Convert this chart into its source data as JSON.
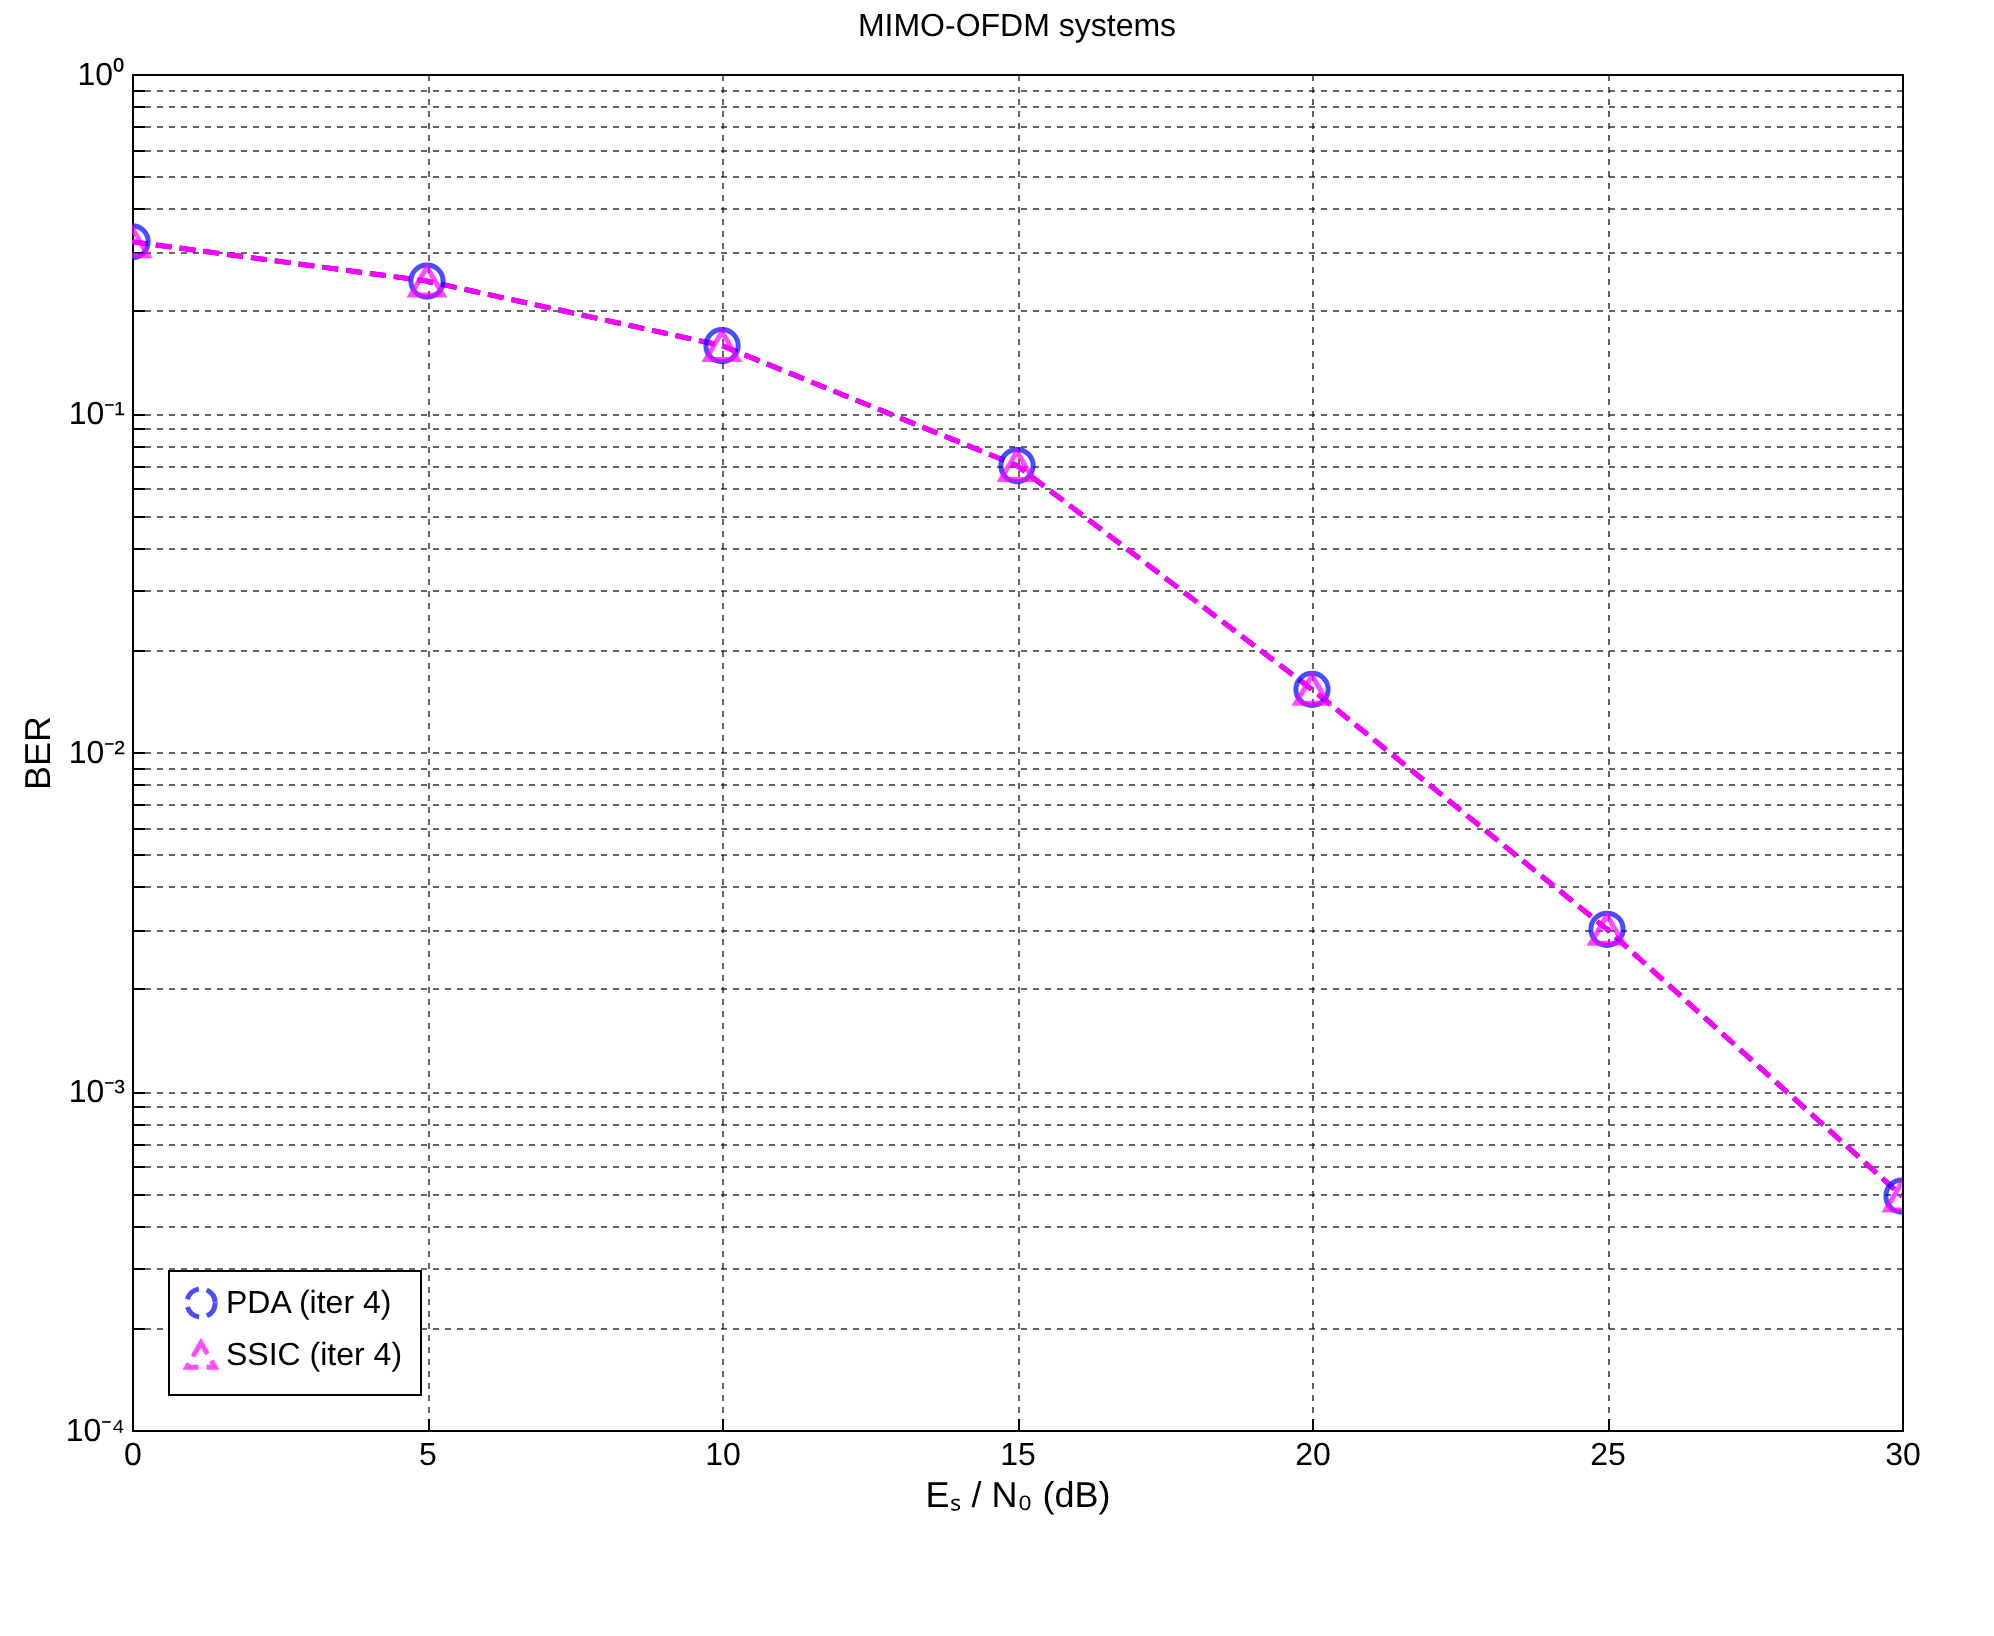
{
  "chart_data": {
    "type": "line",
    "title": "MIMO-OFDM systems",
    "xlabel": "Eₛ / N₀ (dB)",
    "ylabel": "BER",
    "log": "y",
    "grid": true,
    "legend": "bottom left",
    "line_style": "dashed",
    "xlim": [
      0,
      30
    ],
    "xticks": [
      0,
      5,
      10,
      15,
      20,
      25,
      30
    ],
    "ylim": [
      0.0001,
      1
    ],
    "yticks": [
      {
        "value": 0.0001,
        "label": "10⁻⁴"
      },
      {
        "value": 0.0002,
        "label": null
      },
      {
        "value": 0.0003,
        "label": null
      },
      {
        "value": 0.0004,
        "label": null
      },
      {
        "value": 0.0005,
        "label": null
      },
      {
        "value": 0.0006,
        "label": null
      },
      {
        "value": 0.0007,
        "label": null
      },
      {
        "value": 0.0008,
        "label": null
      },
      {
        "value": 0.0009,
        "label": null
      },
      {
        "value": 0.001,
        "label": "10⁻³"
      },
      {
        "value": 0.002,
        "label": null
      },
      {
        "value": 0.003,
        "label": null
      },
      {
        "value": 0.004,
        "label": null
      },
      {
        "value": 0.005,
        "label": null
      },
      {
        "value": 0.006,
        "label": null
      },
      {
        "value": 0.007,
        "label": null
      },
      {
        "value": 0.008,
        "label": null
      },
      {
        "value": 0.009,
        "label": null
      },
      {
        "value": 0.01,
        "label": "10⁻²"
      },
      {
        "value": 0.02,
        "label": null
      },
      {
        "value": 0.03,
        "label": null
      },
      {
        "value": 0.04,
        "label": null
      },
      {
        "value": 0.05,
        "label": null
      },
      {
        "value": 0.06,
        "label": null
      },
      {
        "value": 0.07,
        "label": null
      },
      {
        "value": 0.08,
        "label": null
      },
      {
        "value": 0.09,
        "label": null
      },
      {
        "value": 0.1,
        "label": "10⁻¹"
      },
      {
        "value": 0.2,
        "label": null
      },
      {
        "value": 0.3,
        "label": null
      },
      {
        "value": 0.4,
        "label": null
      },
      {
        "value": 0.5,
        "label": null
      },
      {
        "value": 0.6,
        "label": null
      },
      {
        "value": 0.7,
        "label": null
      },
      {
        "value": 0.8,
        "label": null
      },
      {
        "value": 0.9,
        "label": null
      },
      {
        "value": 1,
        "label": "10⁰"
      }
    ],
    "x": [
      0,
      5,
      10,
      15,
      20,
      25,
      30
    ],
    "series": [
      {
        "name": "PDA (iter 4)",
        "color": "#0000ff",
        "marker": "circle",
        "values": [
          0.32,
          0.245,
          0.158,
          0.07,
          0.0153,
          0.003,
          0.00049
        ]
      },
      {
        "name": "SSIC (iter 4)",
        "color": "#ff00ff",
        "marker": "triangle",
        "values": [
          0.32,
          0.245,
          0.158,
          0.07,
          0.0153,
          0.003,
          0.00049
        ]
      }
    ]
  }
}
